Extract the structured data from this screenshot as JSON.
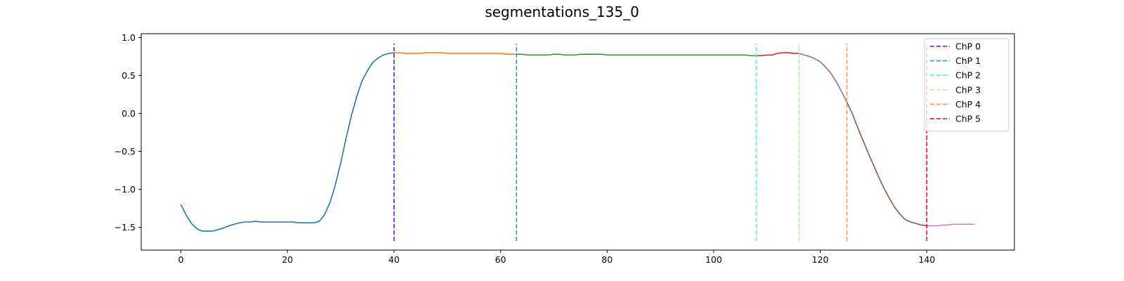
{
  "chart_data": {
    "type": "line",
    "title": "segmentations_135_0",
    "xlabel": "",
    "ylabel": "",
    "xlim": [
      -7.45,
      156.45
    ],
    "ylim": [
      -1.8,
      1.05
    ],
    "xticks": [
      0,
      20,
      40,
      60,
      80,
      100,
      120,
      140
    ],
    "yticks": [
      -1.5,
      -1.0,
      -0.5,
      0.0,
      0.5,
      1.0
    ],
    "ytick_labels": [
      "−1.5",
      "−1.0",
      "−0.5",
      "0.0",
      "0.5",
      "1.0"
    ],
    "grid": false,
    "legend_position": "top-right",
    "x": [
      0,
      1,
      2,
      3,
      4,
      5,
      6,
      7,
      8,
      9,
      10,
      11,
      12,
      13,
      14,
      15,
      16,
      17,
      18,
      19,
      20,
      21,
      22,
      23,
      24,
      25,
      26,
      27,
      28,
      29,
      30,
      31,
      32,
      33,
      34,
      35,
      36,
      37,
      38,
      39,
      40,
      41,
      42,
      43,
      44,
      45,
      46,
      47,
      48,
      49,
      50,
      51,
      52,
      53,
      54,
      55,
      56,
      57,
      58,
      59,
      60,
      61,
      62,
      63,
      64,
      65,
      66,
      67,
      68,
      69,
      70,
      71,
      72,
      73,
      74,
      75,
      76,
      77,
      78,
      79,
      80,
      81,
      82,
      83,
      84,
      85,
      86,
      87,
      88,
      89,
      90,
      91,
      92,
      93,
      94,
      95,
      96,
      97,
      98,
      99,
      100,
      101,
      102,
      103,
      104,
      105,
      106,
      107,
      108,
      109,
      110,
      111,
      112,
      113,
      114,
      115,
      116,
      117,
      118,
      119,
      120,
      121,
      122,
      123,
      124,
      125,
      126,
      127,
      128,
      129,
      130,
      131,
      132,
      133,
      134,
      135,
      136,
      137,
      138,
      139,
      140,
      141,
      142,
      143,
      144,
      145,
      146,
      147,
      148,
      149
    ],
    "y": [
      -1.2,
      -1.34,
      -1.45,
      -1.52,
      -1.55,
      -1.55,
      -1.55,
      -1.53,
      -1.51,
      -1.48,
      -1.46,
      -1.44,
      -1.43,
      -1.43,
      -1.42,
      -1.43,
      -1.43,
      -1.43,
      -1.43,
      -1.43,
      -1.43,
      -1.43,
      -1.44,
      -1.44,
      -1.44,
      -1.44,
      -1.42,
      -1.33,
      -1.17,
      -0.94,
      -0.65,
      -0.33,
      -0.03,
      0.22,
      0.43,
      0.56,
      0.67,
      0.73,
      0.77,
      0.79,
      0.8,
      0.8,
      0.79,
      0.79,
      0.79,
      0.79,
      0.8,
      0.8,
      0.8,
      0.8,
      0.79,
      0.79,
      0.79,
      0.79,
      0.79,
      0.79,
      0.79,
      0.79,
      0.79,
      0.79,
      0.79,
      0.78,
      0.78,
      0.78,
      0.78,
      0.77,
      0.77,
      0.77,
      0.77,
      0.77,
      0.78,
      0.78,
      0.77,
      0.77,
      0.77,
      0.78,
      0.78,
      0.78,
      0.78,
      0.78,
      0.77,
      0.77,
      0.77,
      0.77,
      0.77,
      0.77,
      0.77,
      0.77,
      0.77,
      0.77,
      0.77,
      0.77,
      0.77,
      0.77,
      0.77,
      0.77,
      0.77,
      0.77,
      0.77,
      0.77,
      0.77,
      0.77,
      0.77,
      0.77,
      0.77,
      0.77,
      0.77,
      0.76,
      0.76,
      0.76,
      0.77,
      0.77,
      0.79,
      0.8,
      0.8,
      0.79,
      0.79,
      0.77,
      0.75,
      0.72,
      0.68,
      0.61,
      0.53,
      0.42,
      0.29,
      0.15,
      0.0,
      -0.18,
      -0.35,
      -0.52,
      -0.68,
      -0.84,
      -0.99,
      -1.12,
      -1.24,
      -1.33,
      -1.4,
      -1.43,
      -1.45,
      -1.47,
      -1.48,
      -1.48,
      -1.48,
      -1.47,
      -1.47,
      -1.46,
      -1.46,
      -1.46,
      -1.46,
      -1.46
    ],
    "segments": [
      {
        "start": 0,
        "end": 40,
        "color": "#1f77b4"
      },
      {
        "start": 40,
        "end": 63,
        "color": "#ff7f0e"
      },
      {
        "start": 63,
        "end": 108,
        "color": "#2ca02c"
      },
      {
        "start": 108,
        "end": 116,
        "color": "#d62728"
      },
      {
        "start": 116,
        "end": 125,
        "color": "#9467bd"
      },
      {
        "start": 125,
        "end": 140,
        "color": "#8c564b"
      },
      {
        "start": 140,
        "end": 149,
        "color": "#e377c2"
      }
    ],
    "change_points": [
      {
        "name": "ChP 0",
        "x": 40,
        "color": "#8000ff"
      },
      {
        "name": "ChP 1",
        "x": 63,
        "color": "#1996f3"
      },
      {
        "name": "ChP 2",
        "x": 108,
        "color": "#4df3ce"
      },
      {
        "name": "ChP 3",
        "x": 116,
        "color": "#b3f396"
      },
      {
        "name": "ChP 4",
        "x": 125,
        "color": "#ff964f"
      },
      {
        "name": "ChP 5",
        "x": 140,
        "color": "#ff0000"
      }
    ],
    "vline_range": [
      -1.68,
      0.92
    ]
  }
}
